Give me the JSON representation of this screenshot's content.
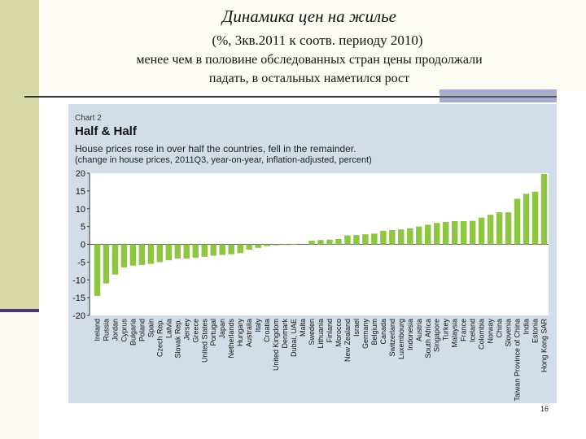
{
  "slide": {
    "title": "Динамика цен на жилье",
    "subtitle": "(%, 3кв.2011 к соотв. периоду 2010)",
    "desc_line1": "менее чем в половине обследованных стран цены продолжали",
    "desc_line2": "падать, в остальных наметился рост",
    "page_number": "16"
  },
  "chart_data": {
    "type": "bar",
    "label": "Chart 2",
    "title": "Half & Half",
    "subtitle": "House prices rose in over half the countries, fell in the remainder.",
    "note": "(change in house prices, 2011Q3, year-on-year, inflation-adjusted, percent)",
    "xlabel": "",
    "ylabel": "",
    "ylim": [
      -20,
      20
    ],
    "yticks": [
      20,
      15,
      10,
      5,
      0,
      -5,
      -10,
      -15,
      -20
    ],
    "bar_color": "#8ec641",
    "grid": false,
    "categories": [
      "Ireland",
      "Russia",
      "Jordan",
      "Cyprus",
      "Bulgaria",
      "Poland",
      "Spain",
      "Czech Rep.",
      "Latvia",
      "Slovak Rep.",
      "Jersey",
      "Greece",
      "United States",
      "Portugal",
      "Japan",
      "Netherlands",
      "Hungary",
      "Australia",
      "Italy",
      "Croatia",
      "United Kingdom",
      "Denmark",
      "Dubai, UAE",
      "Malta",
      "Sweden",
      "Lithuania",
      "Finland",
      "Morocco",
      "New Zealand",
      "Israel",
      "Germany",
      "Belgium",
      "Canada",
      "Switzerland",
      "Luxembourg",
      "Indonesia",
      "Austria",
      "South Africa",
      "Singapore",
      "Turkey",
      "Malaysia",
      "France",
      "Iceland",
      "Colombia",
      "Norway",
      "China",
      "Slovenia",
      "Taiwan Province of China",
      "India",
      "Estonia",
      "Hong Kong SAR"
    ],
    "values": [
      -14.5,
      -11,
      -8.5,
      -6.5,
      -6,
      -5.8,
      -5.5,
      -5,
      -4.5,
      -4,
      -4,
      -3.8,
      -3.5,
      -3.2,
      -3,
      -2.8,
      -2.5,
      -1.5,
      -1,
      -0.5,
      -0.3,
      -0.2,
      -0.1,
      0,
      1,
      1.2,
      1.3,
      1.5,
      2.5,
      2.6,
      2.8,
      3,
      3.8,
      4,
      4.2,
      4.5,
      5,
      5.5,
      6,
      6.3,
      6.5,
      6.5,
      6.6,
      7.5,
      8.3,
      9,
      9,
      12.8,
      14.2,
      14.8,
      19.8
    ]
  }
}
